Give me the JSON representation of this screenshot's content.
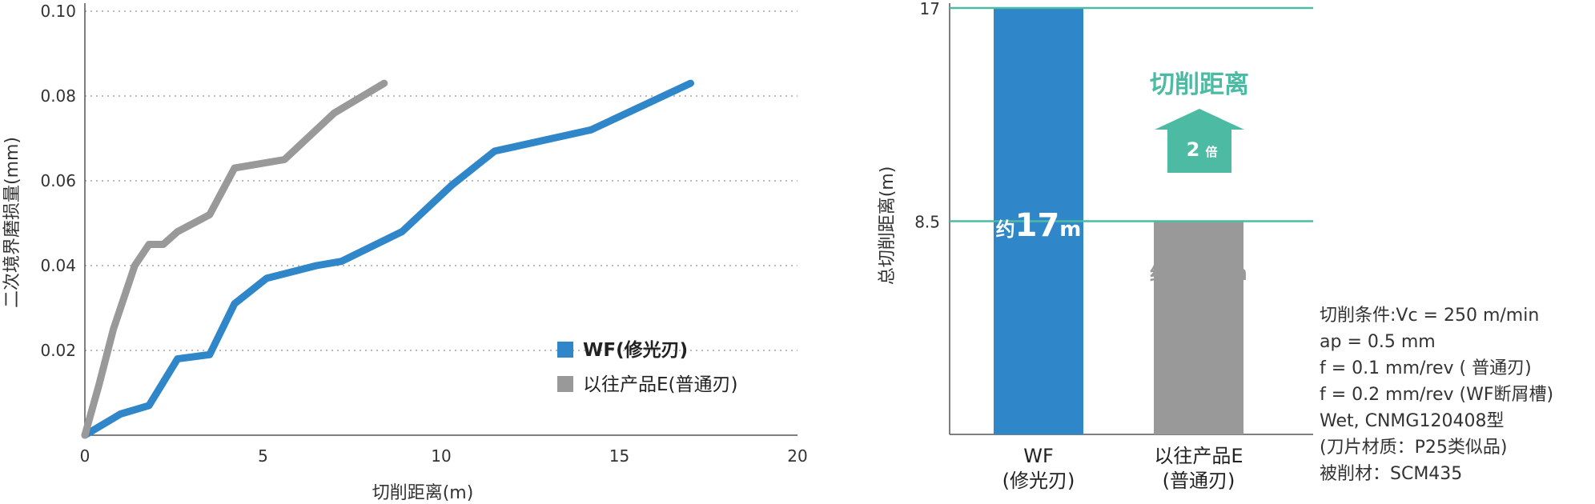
{
  "colors": {
    "wf": "#2f86c9",
    "conventional": "#999999",
    "accent": "#4dbba4",
    "axis": "#555555",
    "grid": "#bbbbbb"
  },
  "chart_data": [
    {
      "type": "line",
      "xlabel": "切削距离(m)",
      "ylabel": "二次境界磨损量(mm)",
      "xlim": [
        0,
        20
      ],
      "ylim": [
        0,
        0.1
      ],
      "x_ticks": [
        "0",
        "5",
        "10",
        "15",
        "20"
      ],
      "y_ticks": [
        "0.02",
        "0.04",
        "0.06",
        "0.08",
        "0.10"
      ],
      "grid": "horizontal-dotted",
      "legend_position": "bottom-right",
      "series": [
        {
          "name": "WF(修光刃)",
          "color": "#2f86c9",
          "x": [
            0.0,
            1.0,
            1.8,
            2.6,
            3.5,
            4.2,
            5.1,
            6.5,
            7.2,
            8.9,
            10.3,
            11.5,
            14.2,
            17.0
          ],
          "y": [
            0.0,
            0.005,
            0.007,
            0.018,
            0.019,
            0.031,
            0.037,
            0.04,
            0.041,
            0.048,
            0.059,
            0.067,
            0.072,
            0.083
          ]
        },
        {
          "name": "以往产品E(普通刃)",
          "color": "#999999",
          "x": [
            0.0,
            0.4,
            0.8,
            1.4,
            1.8,
            2.2,
            2.6,
            3.5,
            4.2,
            5.6,
            7.0,
            8.4
          ],
          "y": [
            0.0,
            0.012,
            0.025,
            0.04,
            0.045,
            0.045,
            0.048,
            0.052,
            0.063,
            0.065,
            0.076,
            0.083
          ]
        }
      ]
    },
    {
      "type": "bar",
      "ylabel": "总切削距离(m)",
      "y_ticks": [
        "17",
        "8.5"
      ],
      "categories": [
        {
          "line1": "WF",
          "line2": "(修光刃)"
        },
        {
          "line1": "以往产品E",
          "line2": "(普通刃)"
        }
      ],
      "values": [
        17,
        8.5
      ],
      "value_labels": [
        {
          "prefix": "约",
          "number": "17",
          "unit": "m"
        },
        {
          "prefix": "约",
          "number": "8.5",
          "unit": "m"
        }
      ],
      "colors": [
        "#2f86c9",
        "#999999"
      ],
      "annotation": {
        "title": "切削距离",
        "value": "2",
        "unit": "倍"
      }
    }
  ],
  "conditions": [
    "切削条件:Vc = 250 m/min",
    "ap = 0.5 mm",
    "f = 0.1 mm/rev ( 普通刃)",
    "f = 0.2 mm/rev (WF断屑槽)",
    "Wet,  CNMG120408型",
    "(刀片材质：P25类似品)",
    "被削材：SCM435"
  ]
}
